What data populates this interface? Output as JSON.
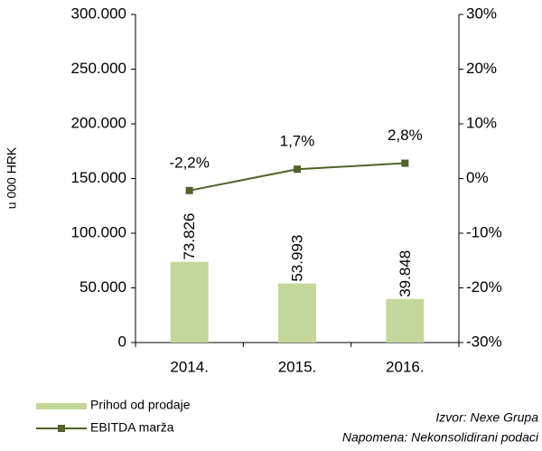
{
  "chart_data": {
    "type": "bar",
    "y_label": "u 000 HRK",
    "categories": [
      "2014.",
      "2015.",
      "2016."
    ],
    "series": [
      {
        "name": "Prihod od prodaje",
        "type": "bar",
        "color": "#c4d79b",
        "values": [
          73826,
          53993,
          39848
        ],
        "value_labels": [
          "73.826",
          "53.993",
          "39.848"
        ]
      },
      {
        "name": "EBITDA marža",
        "type": "line",
        "axis": "y2",
        "color": "#4f6228",
        "values": [
          -2.2,
          1.7,
          2.8
        ],
        "value_labels": [
          "-2,2%",
          "1,7%",
          "2,8%"
        ]
      }
    ],
    "ylim": [
      0,
      300000
    ],
    "yticks": [
      0,
      {
        "value": 50000,
        "label": "50.000"
      },
      {
        "value": 100000,
        "label": "100.000"
      },
      {
        "value": 150000,
        "label": "150.000"
      },
      {
        "value": 200000,
        "label": "200.000"
      },
      {
        "value": 250000,
        "label": "250.000"
      },
      {
        "value": 300000,
        "label": "300.000"
      }
    ],
    "y2lim": [
      -30,
      30
    ],
    "y2ticks": [
      {
        "value": -30,
        "label": "-30%"
      },
      {
        "value": -20,
        "label": "-20%"
      },
      {
        "value": -10,
        "label": "-10%"
      },
      {
        "value": 0,
        "label": "0%"
      },
      {
        "value": 10,
        "label": "10%"
      },
      {
        "value": 20,
        "label": "20%"
      },
      {
        "value": 30,
        "label": "30%"
      }
    ],
    "annotations": [
      "Izvor: Nexe Grupa",
      "Napomena: Nekonsolidirani podaci"
    ]
  }
}
